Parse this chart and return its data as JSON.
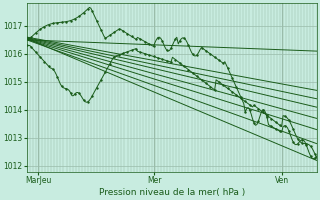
{
  "title": "Pression niveau de la mer( hPa )",
  "bg_color": "#c8ece0",
  "grid_major_color": "#9abcaa",
  "grid_minor_color": "#b8d8c8",
  "line_color": "#1a5c1a",
  "xlim": [
    0,
    1
  ],
  "ylim": [
    1011.8,
    1017.8
  ],
  "yticks": [
    1012,
    1013,
    1014,
    1015,
    1016,
    1017
  ],
  "xtick_labels": [
    "MarJeu",
    "Mer",
    "Ven"
  ],
  "xtick_positions": [
    0.04,
    0.44,
    0.88
  ]
}
